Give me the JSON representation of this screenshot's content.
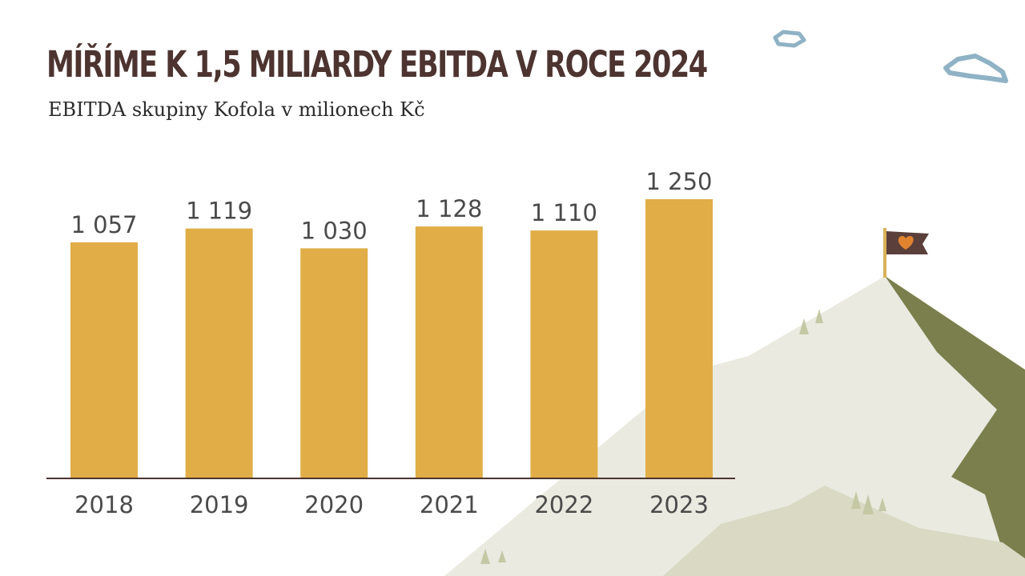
{
  "header": {
    "title": "MÍŘÍME K 1,5 MILIARDY EBITDA V ROCE 2024",
    "subtitle": "EBITDA skupiny Kofola v milionech Kč"
  },
  "colors": {
    "title": "#4d3430",
    "subtitle": "#2b2b2b",
    "bar": "#e0ad47",
    "axis": "#4d3430",
    "label": "#4a4a4a",
    "mountain_light": "#eaeae0",
    "mountain_mid": "#d9d9c4",
    "mountain_dark": "#7b7f4d",
    "tree": "#c4c8a4",
    "cloud": "#8fb2c5",
    "flag": "#5a3f3a",
    "flag_emblem": "#e0832f",
    "pole": "#d8b25a"
  },
  "icons": {
    "flag": "flag-icon",
    "flag_emblem": "heart-leaf-icon",
    "clouds": "cloud-icon",
    "trees": "tree-icon"
  },
  "chart_data": {
    "type": "bar",
    "categories": [
      "2018",
      "2019",
      "2020",
      "2021",
      "2022",
      "2023"
    ],
    "values": [
      1057,
      1119,
      1030,
      1128,
      1110,
      1250
    ],
    "value_labels": [
      "1 057",
      "1 119",
      "1 030",
      "1 128",
      "1 110",
      "1 250"
    ],
    "title": "MÍŘÍME K 1,5 MILIARDY EBITDA V ROCE 2024",
    "subtitle": "EBITDA skupiny Kofola v milionech Kč",
    "xlabel": "",
    "ylabel": "",
    "ylim": [
      0,
      1250
    ],
    "grid": false,
    "legend": "none"
  }
}
